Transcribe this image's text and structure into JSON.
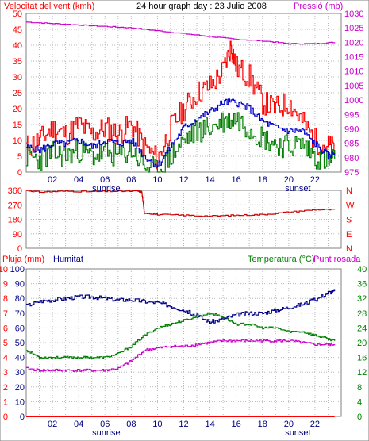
{
  "header": {
    "left_label": "Velocitat del vent (kmh)",
    "center_label": "24 hour graph day : 23 Julio 2008",
    "right_label": "Pressió (mb)"
  },
  "colors": {
    "wind_gust": "#ff0000",
    "wind_avg": "#0000cc",
    "wind_speed": "#008000",
    "pressure": "#cc00cc",
    "direction": "#cc0000",
    "humidity": "#00008b",
    "temperature": "#008000",
    "dew_point": "#cc00cc",
    "rain": "#ff0000",
    "axis_left": "#ff0000",
    "axis_right_top": "#cc00cc",
    "axis_humidity": "#00008b",
    "axis_temp": "#008000"
  },
  "x_axis": {
    "tick_labels": [
      "02",
      "04",
      "06",
      "08",
      "10",
      "12",
      "14",
      "16",
      "18",
      "20",
      "22"
    ],
    "sunrise_label": "sunrise",
    "sunset_label": "sunset"
  },
  "chart_data": [
    {
      "type": "line",
      "name": "wind",
      "x_range": [
        0,
        24
      ],
      "left_axis": {
        "range": [
          0,
          50
        ],
        "ticks": [
          "0",
          "5",
          "10",
          "15",
          "20",
          "25",
          "30",
          "35",
          "40",
          "45",
          "50"
        ]
      },
      "right_axis": {
        "range": [
          975,
          1030
        ],
        "ticks": [
          "975",
          "980",
          "985",
          "990",
          "995",
          "1000",
          "1005",
          "1010",
          "1015",
          "1020",
          "1025",
          "1030"
        ]
      },
      "series": [
        {
          "name": "gust",
          "x": [
            0,
            1,
            2,
            3,
            4,
            5,
            6,
            7,
            8,
            9,
            10,
            11,
            12,
            13,
            14,
            15,
            15.6,
            16,
            17,
            18,
            19,
            20,
            21,
            22,
            23,
            23.5
          ],
          "values": [
            8,
            10,
            14,
            12,
            15,
            12,
            14,
            12,
            15,
            8,
            4,
            14,
            20,
            25,
            27,
            32,
            40,
            33,
            30,
            22,
            20,
            22,
            16,
            10,
            8,
            7
          ]
        },
        {
          "name": "average",
          "x": [
            0,
            1,
            2,
            3,
            4,
            5,
            6,
            7,
            8,
            9,
            10,
            11,
            12,
            13,
            14,
            15,
            16,
            17,
            18,
            19,
            20,
            21,
            22,
            23,
            23.5
          ],
          "values": [
            8,
            7,
            9,
            9,
            10,
            8,
            10,
            9,
            10,
            5,
            2,
            8,
            14,
            17,
            19,
            22,
            22,
            20,
            16,
            14,
            13,
            13,
            9,
            5,
            6
          ]
        },
        {
          "name": "speed",
          "x": [
            0,
            1,
            2,
            3,
            4,
            5,
            6,
            7,
            8,
            9,
            10,
            11,
            12,
            13,
            14,
            15,
            16,
            17,
            18,
            19,
            20,
            21,
            22,
            23,
            23.5
          ],
          "values": [
            5,
            4,
            6,
            5,
            7,
            5,
            6,
            5,
            7,
            2,
            0,
            5,
            10,
            13,
            14,
            16,
            17,
            14,
            11,
            9,
            8,
            9,
            5,
            3,
            4
          ]
        },
        {
          "name": "pressure",
          "axis": "right",
          "x": [
            0,
            2,
            4,
            6,
            8,
            10,
            12,
            14,
            16,
            18,
            20,
            22,
            23.5
          ],
          "values": [
            1027,
            1026.5,
            1026,
            1025.5,
            1025,
            1024,
            1023,
            1022,
            1021,
            1020.5,
            1019.5,
            1019.5,
            1020
          ]
        }
      ]
    },
    {
      "type": "line",
      "name": "wind-direction",
      "x_range": [
        0,
        24
      ],
      "left_axis": {
        "range": [
          0,
          360
        ],
        "ticks": [
          "0",
          "90",
          "180",
          "270",
          "360"
        ]
      },
      "right_axis_labels": [
        "N",
        "W",
        "S",
        "E",
        "N"
      ],
      "series": [
        {
          "name": "direction",
          "x": [
            0,
            1,
            3,
            5,
            7,
            8.5,
            8.8,
            9,
            10,
            12,
            14,
            16,
            18,
            20,
            22,
            23.5
          ],
          "values": [
            360,
            350,
            355,
            352,
            355,
            355,
            350,
            220,
            210,
            205,
            200,
            205,
            210,
            225,
            240,
            240
          ]
        }
      ]
    },
    {
      "type": "line",
      "name": "humidity-temperature",
      "x_range": [
        0,
        24
      ],
      "headers": {
        "rain": "Pluja (mm)",
        "humidity": "Humitat",
        "temp": "Temperatura (°C)",
        "dew": "Punt rosada"
      },
      "rain_axis": {
        "range": [
          0,
          10
        ],
        "ticks": [
          "0",
          "1",
          "2",
          "3",
          "4",
          "5",
          "6",
          "7",
          "8",
          "9",
          "10"
        ]
      },
      "humidity_axis": {
        "range": [
          0,
          100
        ],
        "ticks": [
          "0",
          "10",
          "20",
          "30",
          "40",
          "50",
          "60",
          "70",
          "80",
          "90",
          "100"
        ]
      },
      "temp_axis": {
        "range": [
          0,
          40
        ],
        "ticks": [
          "0",
          "4",
          "8",
          "12",
          "16",
          "20",
          "24",
          "28",
          "32",
          "36",
          "40"
        ]
      },
      "series": [
        {
          "name": "humidity",
          "x": [
            0,
            1,
            2,
            3,
            4,
            5,
            6,
            7,
            8,
            9,
            10,
            11,
            12,
            13,
            14,
            15,
            16,
            17,
            18,
            19,
            20,
            21,
            22,
            23,
            23.5
          ],
          "values": [
            75,
            78,
            79,
            80,
            81,
            81,
            80,
            79,
            79,
            78,
            77,
            75,
            72,
            68,
            64,
            66,
            69,
            70,
            70,
            72,
            74,
            76,
            79,
            84,
            85
          ]
        },
        {
          "name": "temperature",
          "x": [
            0,
            1,
            2,
            3,
            4,
            5,
            6,
            7,
            8,
            9,
            10,
            11,
            12,
            13,
            14,
            15,
            16,
            17,
            18,
            19,
            20,
            21,
            22,
            23,
            23.5
          ],
          "values": [
            18,
            16,
            16,
            16,
            16,
            16,
            16,
            17,
            19,
            22,
            24,
            25,
            26,
            27,
            28,
            27,
            25,
            25,
            24,
            24,
            23,
            23,
            22,
            21,
            20.5
          ]
        },
        {
          "name": "dew-point",
          "x": [
            0,
            1,
            2,
            3,
            4,
            5,
            6,
            7,
            8,
            9,
            10,
            11,
            12,
            13,
            14,
            15,
            16,
            17,
            18,
            19,
            20,
            21,
            22,
            23,
            23.5
          ],
          "values": [
            13,
            12.5,
            12.5,
            12.5,
            12.5,
            12.5,
            12.5,
            13,
            15,
            18,
            18.5,
            19,
            19,
            19.5,
            20,
            20.5,
            20.5,
            20.5,
            20.5,
            20.5,
            20.5,
            20,
            19.5,
            19.5,
            19.5
          ]
        },
        {
          "name": "rain",
          "axis": "rain",
          "x": [
            0,
            23.5
          ],
          "values": [
            0,
            0
          ]
        }
      ]
    }
  ]
}
